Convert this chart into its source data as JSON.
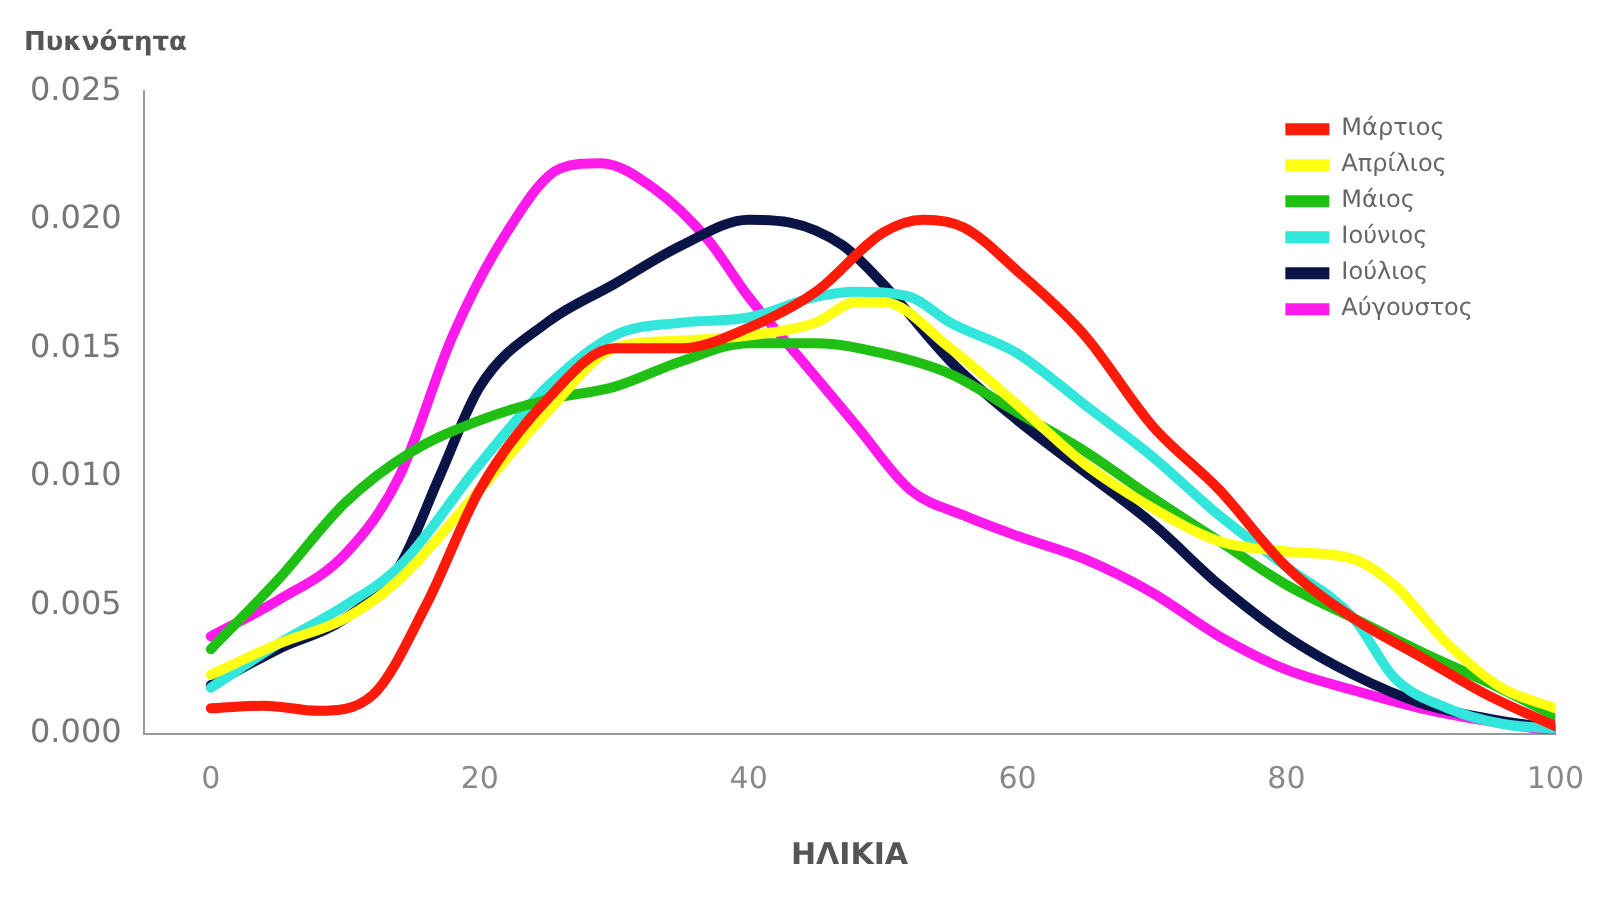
{
  "chart_data": {
    "type": "line",
    "ylabel": "Πυκνότητα",
    "xlabel": "ΗΛΙΚΙΑ",
    "xlim": [
      -5,
      100
    ],
    "xticks": [
      0,
      20,
      40,
      60,
      80,
      100
    ],
    "ylim": [
      0,
      0.025
    ],
    "yticks": [
      {
        "value": 0,
        "label": "0.000"
      },
      0.005,
      {
        "value": 0.01,
        "label": "0.010"
      },
      0.015,
      {
        "value": 0.02,
        "label": "0.020"
      },
      0.025
    ],
    "grid": false,
    "legend": "top right",
    "marker": "none",
    "line_style": "solid",
    "series": [
      {
        "name": "Μάρτιος",
        "color": "#ff1a0a",
        "x": [
          0,
          4,
          8,
          12,
          16,
          20,
          25,
          30,
          35,
          40,
          45,
          50,
          53,
          56,
          60,
          65,
          70,
          75,
          80,
          85,
          90,
          95,
          100
        ],
        "values": [
          0.001,
          0.0011,
          0.0009,
          0.0015,
          0.005,
          0.0095,
          0.013,
          0.015,
          0.015,
          0.0158,
          0.0172,
          0.0195,
          0.02,
          0.0197,
          0.018,
          0.0155,
          0.012,
          0.0095,
          0.0065,
          0.0045,
          0.003,
          0.0015,
          0.0003
        ]
      },
      {
        "name": "Απρίλιος",
        "color": "#ffff14",
        "x": [
          0,
          5,
          10,
          14,
          20,
          25,
          30,
          35,
          40,
          45,
          48,
          50,
          55,
          60,
          65,
          70,
          75,
          80,
          85,
          88,
          92,
          96,
          100
        ],
        "values": [
          0.0023,
          0.0035,
          0.0045,
          0.006,
          0.0095,
          0.0125,
          0.015,
          0.0153,
          0.0155,
          0.016,
          0.0168,
          0.0168,
          0.015,
          0.0128,
          0.0105,
          0.0088,
          0.0075,
          0.0071,
          0.0068,
          0.0058,
          0.0035,
          0.0018,
          0.001
        ]
      },
      {
        "name": "Μάιος",
        "color": "#1fbf14",
        "x": [
          0,
          5,
          10,
          15,
          20,
          25,
          30,
          35,
          40,
          45,
          50,
          55,
          60,
          65,
          70,
          75,
          80,
          85,
          90,
          95,
          100
        ],
        "values": [
          0.0033,
          0.006,
          0.009,
          0.011,
          0.0122,
          0.013,
          0.0135,
          0.0145,
          0.0152,
          0.0152,
          0.0148,
          0.014,
          0.0125,
          0.011,
          0.0092,
          0.0075,
          0.0058,
          0.0045,
          0.0032,
          0.002,
          0.0007
        ]
      },
      {
        "name": "Ιούνιος",
        "color": "#33e6dc",
        "x": [
          0,
          5,
          10,
          14,
          20,
          25,
          30,
          35,
          40,
          45,
          48,
          52,
          55,
          60,
          65,
          70,
          75,
          80,
          85,
          88,
          92,
          96,
          100
        ],
        "values": [
          0.0018,
          0.0035,
          0.005,
          0.0065,
          0.0105,
          0.0135,
          0.0155,
          0.016,
          0.0162,
          0.017,
          0.0172,
          0.017,
          0.016,
          0.0148,
          0.0128,
          0.0108,
          0.0085,
          0.0065,
          0.0045,
          0.0022,
          0.001,
          0.0004,
          0.0002
        ]
      },
      {
        "name": "Ιούλιος",
        "color": "#0a1446",
        "x": [
          0,
          5,
          10,
          14,
          17,
          20,
          25,
          30,
          35,
          40,
          43,
          47,
          50,
          55,
          60,
          65,
          70,
          75,
          80,
          85,
          90,
          95,
          100
        ],
        "values": [
          0.0019,
          0.0033,
          0.0045,
          0.0065,
          0.01,
          0.0135,
          0.016,
          0.0175,
          0.019,
          0.02,
          0.0199,
          0.019,
          0.0175,
          0.0145,
          0.0122,
          0.0102,
          0.0082,
          0.0058,
          0.0038,
          0.0023,
          0.0012,
          0.0006,
          0.0002
        ]
      },
      {
        "name": "Αύγουστος",
        "color": "#ff1aeb",
        "x": [
          0,
          5,
          10,
          14,
          18,
          22,
          26,
          29,
          33,
          37,
          40,
          44,
          48,
          52,
          56,
          60,
          65,
          70,
          75,
          80,
          85,
          90,
          95,
          100
        ],
        "values": [
          0.0038,
          0.0052,
          0.007,
          0.01,
          0.0155,
          0.0195,
          0.022,
          0.0222,
          0.0212,
          0.0192,
          0.017,
          0.0145,
          0.012,
          0.0095,
          0.0085,
          0.0077,
          0.0068,
          0.0055,
          0.0038,
          0.0025,
          0.0017,
          0.001,
          0.0005,
          0.0001
        ]
      }
    ]
  }
}
